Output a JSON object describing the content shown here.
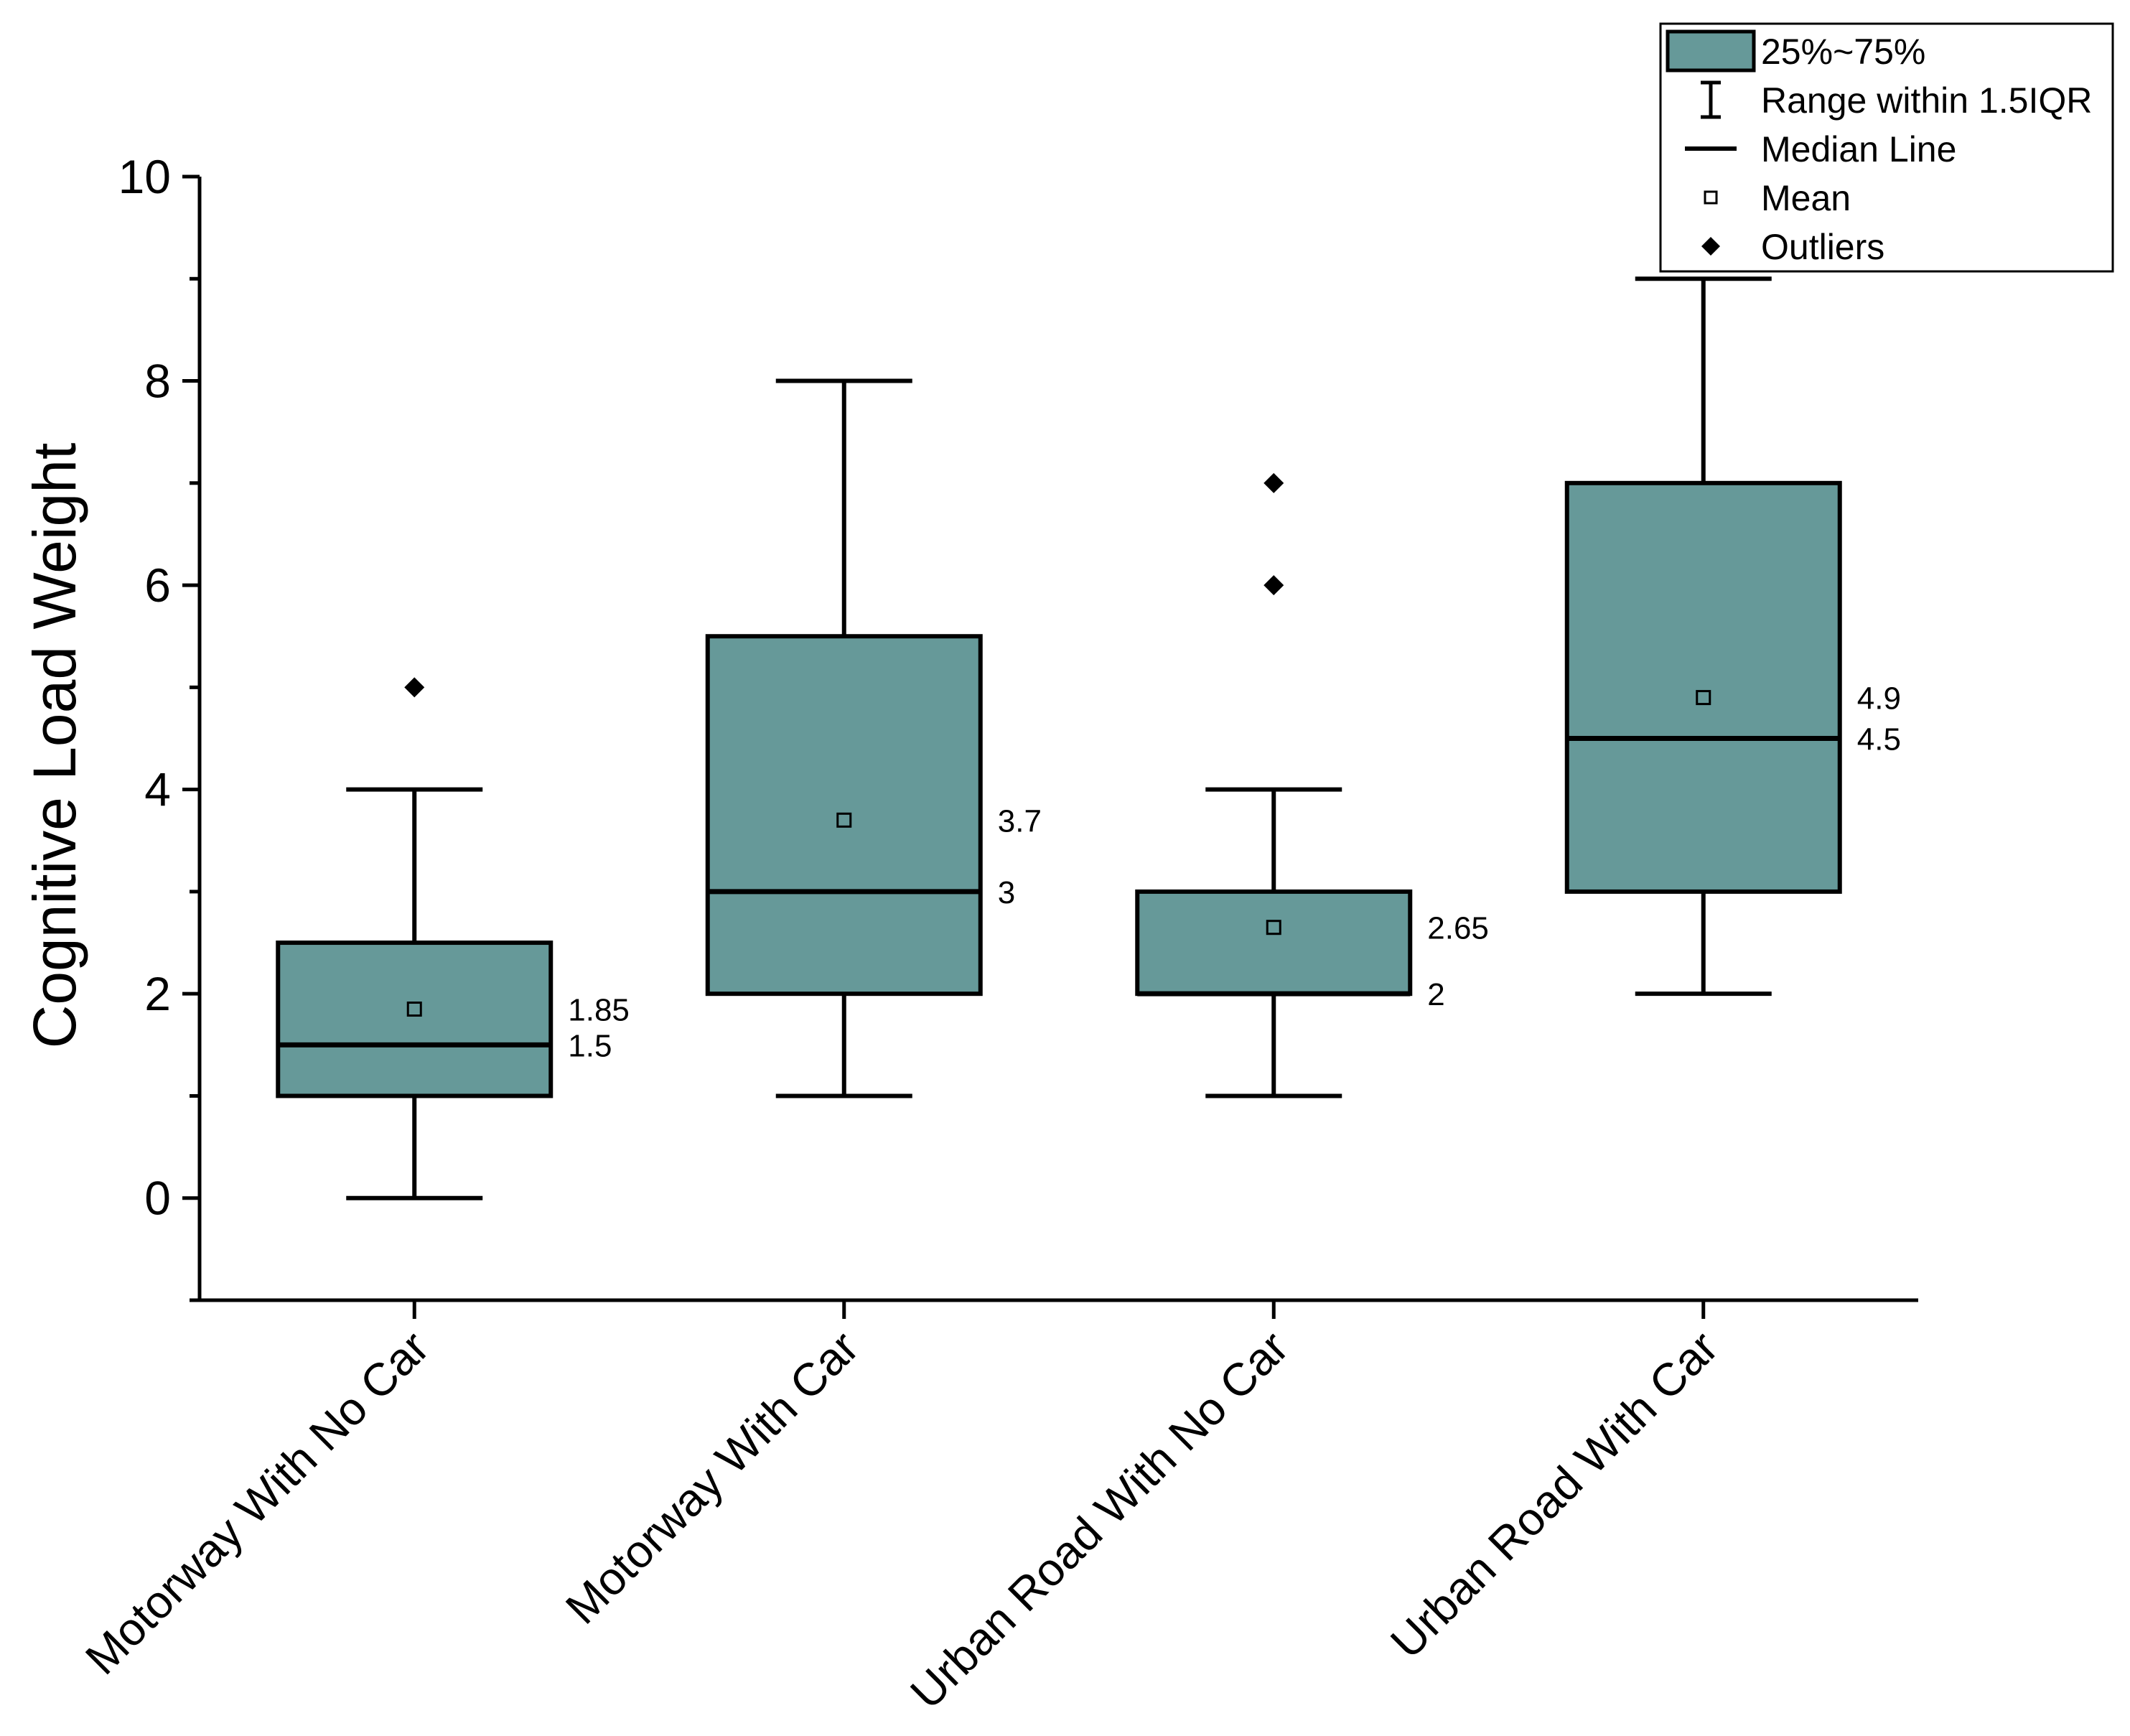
{
  "chart_data": {
    "type": "box",
    "title": "",
    "xlabel": "",
    "ylabel": "Cognitive Load Weight",
    "ylim": [
      -1,
      10
    ],
    "yticks": [
      0,
      2,
      4,
      6,
      8,
      10
    ],
    "grid": false,
    "colors": {
      "box_fill": "#669999",
      "line": "#000000"
    },
    "categories": [
      "Motorway With No Car",
      "Motorway With Car",
      "Urban Road With No Car",
      "Urban Road With Car"
    ],
    "boxes": [
      {
        "category": "Motorway With No Car",
        "q1": 1,
        "q3": 2.5,
        "median": 1.5,
        "mean": 1.85,
        "whisker_low": 0,
        "whisker_high": 4,
        "outliers": [
          5
        ],
        "mean_label": "1.85",
        "median_label": "1.5"
      },
      {
        "category": "Motorway With Car",
        "q1": 2,
        "q3": 5.5,
        "median": 3,
        "mean": 3.7,
        "whisker_low": 1,
        "whisker_high": 8,
        "outliers": [],
        "mean_label": "3.7",
        "median_label": "3"
      },
      {
        "category": "Urban Road With No Car",
        "q1": 2,
        "q3": 3,
        "median": 2,
        "mean": 2.65,
        "whisker_low": 1,
        "whisker_high": 4,
        "outliers": [
          6,
          7
        ],
        "mean_label": "2.65",
        "median_label": "2"
      },
      {
        "category": "Urban Road With Car",
        "q1": 3,
        "q3": 7,
        "median": 4.5,
        "mean": 4.9,
        "whisker_low": 2,
        "whisker_high": 9,
        "outliers": [],
        "mean_label": "4.9",
        "median_label": "4.5"
      }
    ],
    "legend": {
      "position": "top-right",
      "items": [
        {
          "key": "box",
          "label": "25%~75%"
        },
        {
          "key": "range",
          "label": "Range within 1.5IQR"
        },
        {
          "key": "median",
          "label": "Median Line"
        },
        {
          "key": "mean",
          "label": "Mean"
        },
        {
          "key": "outlier",
          "label": "Outliers"
        }
      ]
    }
  }
}
